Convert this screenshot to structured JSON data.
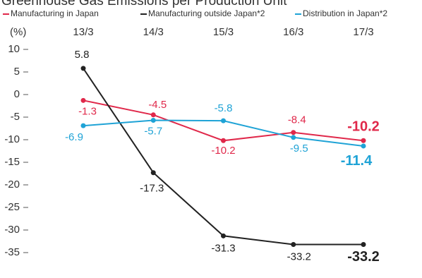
{
  "chart_data": {
    "type": "line",
    "title": "Greenhouse Gas Emissions per Production Unit",
    "y_unit_label": "(%)",
    "categories": [
      "13/3",
      "14/3",
      "15/3",
      "16/3",
      "17/3"
    ],
    "series": [
      {
        "name": "Manufacturing in Japan",
        "color": "#e0284a",
        "values": [
          -1.3,
          -4.5,
          -10.2,
          -8.4,
          -10.2
        ]
      },
      {
        "name": "Manufacturing outside Japan*2",
        "color": "#222222",
        "values": [
          5.8,
          -17.3,
          -31.3,
          -33.2,
          -33.2
        ]
      },
      {
        "name": "Distribution in Japan*2",
        "color": "#1fa3d6",
        "values": [
          -6.9,
          -5.7,
          -5.8,
          -9.5,
          -11.4
        ]
      }
    ],
    "ylim": [
      -37,
      12
    ],
    "yticks": [
      10,
      5,
      0,
      -5,
      -10,
      -15,
      -20,
      -25,
      -30,
      -35
    ]
  }
}
